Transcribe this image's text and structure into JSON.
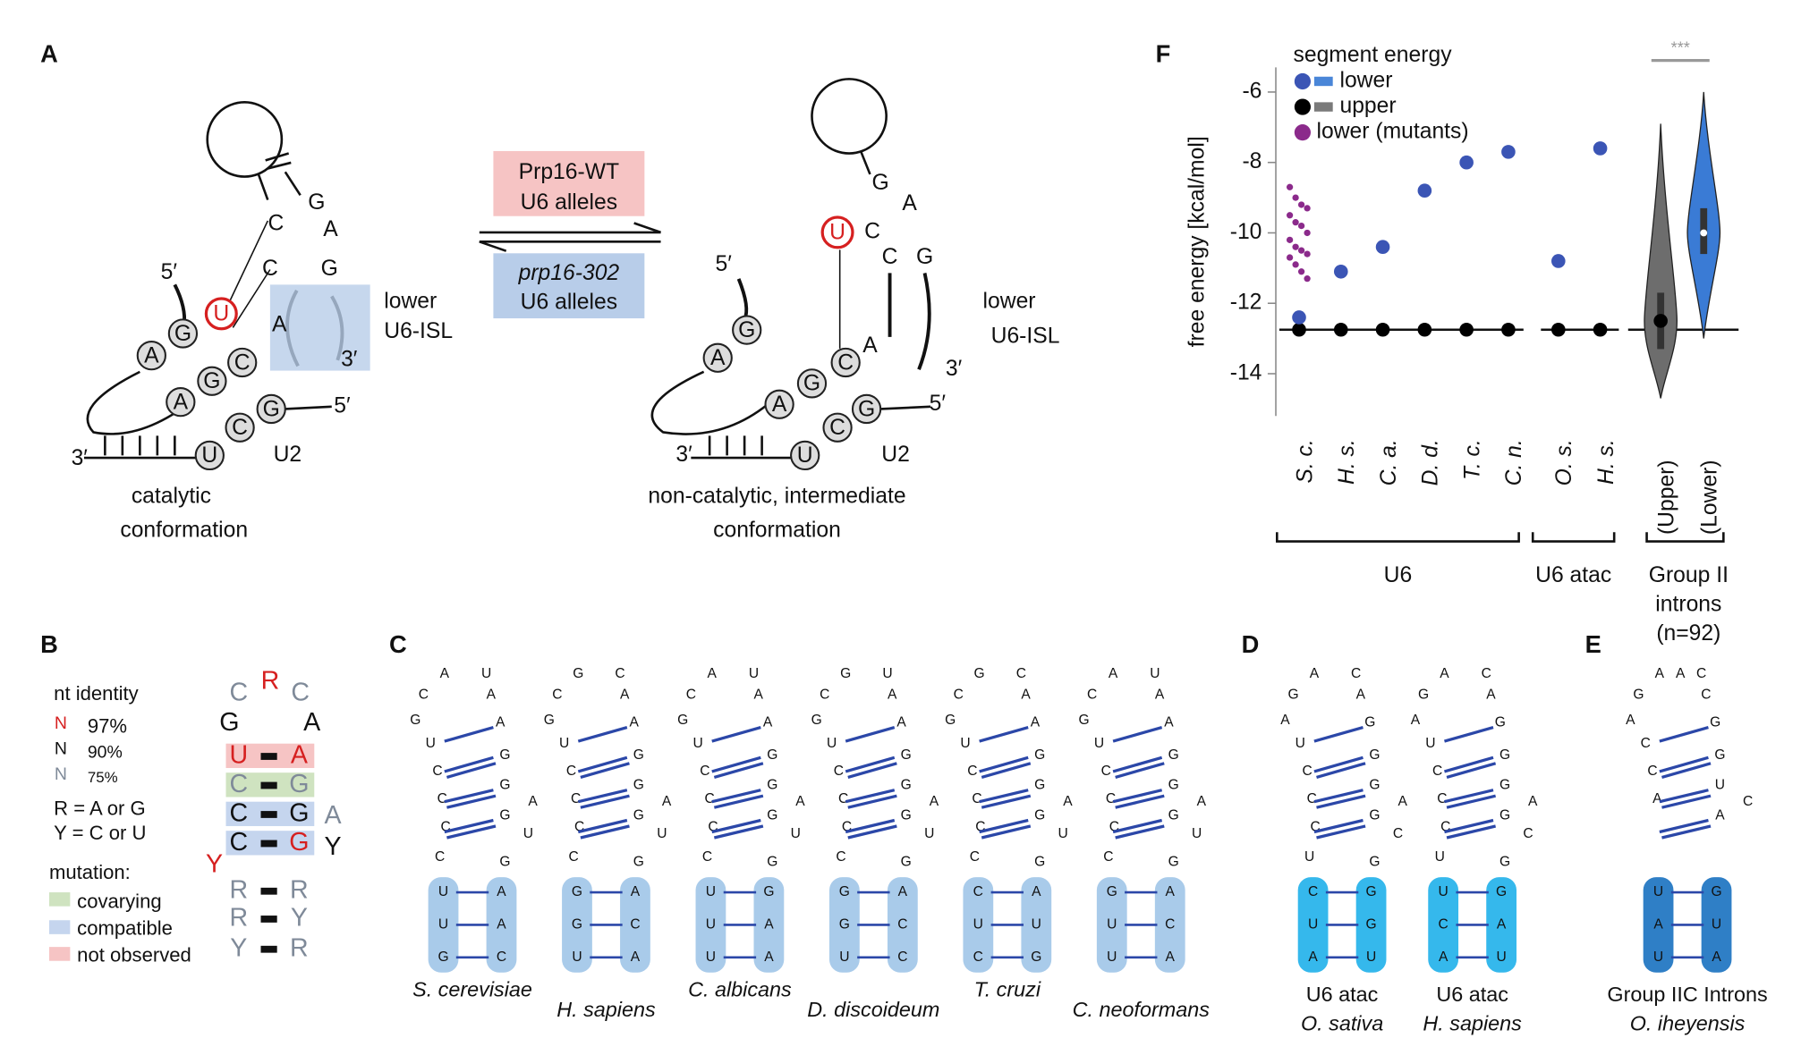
{
  "panel_a": {
    "label": "A",
    "left": {
      "plain": [
        "G",
        "C",
        "A",
        "C",
        "G",
        "A"
      ],
      "red": "U",
      "circled": [
        "G",
        "A",
        "C",
        "A",
        "G",
        "G",
        "C",
        "U"
      ],
      "ends": [
        "5′",
        "3′",
        "3′",
        "5′"
      ],
      "u2": "U2",
      "isl": [
        "lower",
        "U6-ISL"
      ],
      "caption": [
        "catalytic",
        "conformation"
      ]
    },
    "right": {
      "plain": [
        "G",
        "A",
        "C",
        "C",
        "G",
        "A"
      ],
      "red": "U",
      "circled": [
        "G",
        "A",
        "C",
        "A",
        "G",
        "G",
        "C",
        "U"
      ],
      "ends": [
        "5′",
        "3′",
        "3′",
        "5′"
      ],
      "u2": "U2",
      "isl": [
        "lower",
        "U6-ISL"
      ],
      "caption": [
        "non-catalytic, intermediate",
        "conformation"
      ]
    },
    "forward": [
      "Prp16-WT",
      "U6 alleles"
    ],
    "reverse": [
      "prp16-302",
      "U6 alleles"
    ]
  },
  "panel_b": {
    "label": "B",
    "identity_title": "nt identity",
    "identity": [
      {
        "symbol": "N",
        "text": "97%"
      },
      {
        "symbol": "N",
        "text": "90%"
      },
      {
        "symbol": "N",
        "text": "75%"
      }
    ],
    "codes": [
      "R = A or G",
      "Y = C or U"
    ],
    "mutation_title": "mutation:",
    "mutation": [
      "covarying",
      "compatible",
      "not observed"
    ],
    "loop": [
      "C",
      "R",
      "C",
      "G",
      "A"
    ],
    "pairs": [
      [
        "U",
        "A"
      ],
      [
        "C",
        "G"
      ],
      [
        "C",
        "G"
      ],
      [
        "C",
        "G"
      ],
      [
        "R",
        "R"
      ],
      [
        "R",
        "Y"
      ],
      [
        "Y",
        "R"
      ]
    ],
    "bulges": [
      "A",
      "Y",
      "Y"
    ]
  },
  "panel_c": {
    "label": "C",
    "hairpins": [
      {
        "top": [
          "A",
          "U"
        ],
        "left": [
          "C",
          "G",
          "U",
          "C",
          "C",
          "C",
          "C"
        ],
        "right": [
          "A",
          "A",
          "G",
          "G",
          "G",
          "A",
          "U",
          "G"
        ],
        "stem_left": [
          "U",
          "U",
          "G"
        ],
        "stem_right": [
          "A",
          "A",
          "C"
        ],
        "caption": [
          "S. cerevisiae"
        ]
      },
      {
        "top": [
          "G",
          "C"
        ],
        "left": [
          "C",
          "G",
          "U",
          "C",
          "C",
          "C",
          "C"
        ],
        "right": [
          "A",
          "A",
          "G",
          "G",
          "G",
          "A",
          "U",
          "G"
        ],
        "stem_left": [
          "G",
          "G",
          "U"
        ],
        "stem_right": [
          "A",
          "C",
          "A"
        ],
        "caption": [
          "H. sapiens"
        ]
      },
      {
        "top": [
          "A",
          "U"
        ],
        "left": [
          "C",
          "G",
          "U",
          "C",
          "C",
          "C",
          "C"
        ],
        "right": [
          "A",
          "A",
          "G",
          "G",
          "G",
          "A",
          "U",
          "G"
        ],
        "stem_left": [
          "U",
          "U",
          "U"
        ],
        "stem_right": [
          "G",
          "A",
          "A"
        ],
        "caption": [
          "C. albicans"
        ]
      },
      {
        "top": [
          "G",
          "U"
        ],
        "left": [
          "C",
          "G",
          "U",
          "C",
          "C",
          "C",
          "C"
        ],
        "right": [
          "A",
          "A",
          "G",
          "G",
          "G",
          "A",
          "U",
          "G"
        ],
        "stem_left": [
          "G",
          "G",
          "U"
        ],
        "stem_right": [
          "A",
          "C",
          "C"
        ],
        "caption": [
          "D. discoideum"
        ]
      },
      {
        "top": [
          "G",
          "C"
        ],
        "left": [
          "C",
          "G",
          "U",
          "C",
          "C",
          "C",
          "C"
        ],
        "right": [
          "A",
          "A",
          "G",
          "G",
          "G",
          "A",
          "U",
          "G"
        ],
        "stem_left": [
          "C",
          "U",
          "C"
        ],
        "stem_right": [
          "A",
          "U",
          "G"
        ],
        "caption": [
          "T. cruzi"
        ]
      },
      {
        "top": [
          "A",
          "U"
        ],
        "left": [
          "C",
          "G",
          "U",
          "C",
          "C",
          "C",
          "C"
        ],
        "right": [
          "A",
          "A",
          "G",
          "G",
          "G",
          "A",
          "U",
          "G"
        ],
        "stem_left": [
          "G",
          "U",
          "U"
        ],
        "stem_right": [
          "A",
          "C",
          "A"
        ],
        "caption": [
          "C. neoformans"
        ]
      }
    ]
  },
  "panel_d": {
    "label": "D",
    "hairpins": [
      {
        "top": [
          "A",
          "C"
        ],
        "left": [
          "G",
          "A",
          "U",
          "C",
          "C",
          "C",
          "U"
        ],
        "right": [
          "A",
          "G",
          "G",
          "G",
          "G",
          "A",
          "C",
          "G"
        ],
        "stem_left": [
          "C",
          "U",
          "A"
        ],
        "stem_right": [
          "G",
          "G",
          "U"
        ],
        "caption": [
          "U6 atac",
          "O. sativa"
        ]
      },
      {
        "top": [
          "A",
          "C"
        ],
        "left": [
          "G",
          "A",
          "U",
          "C",
          "C",
          "C",
          "U"
        ],
        "right": [
          "A",
          "G",
          "G",
          "G",
          "G",
          "A",
          "C",
          "G"
        ],
        "stem_left": [
          "U",
          "C",
          "A"
        ],
        "stem_right": [
          "G",
          "A",
          "U"
        ],
        "caption": [
          "U6 atac",
          "H. sapiens"
        ]
      }
    ]
  },
  "panel_e": {
    "label": "E",
    "hairpins": [
      {
        "top": [
          "A",
          "A",
          "C"
        ],
        "left": [
          "G",
          "A",
          "C",
          "C",
          "A"
        ],
        "right": [
          "C",
          "G",
          "G",
          "U",
          "A",
          "C"
        ],
        "stem_left": [
          "U",
          "A",
          "U"
        ],
        "stem_right": [
          "G",
          "U",
          "A"
        ],
        "caption": [
          "Group IIC Introns",
          "O. iheyensis"
        ]
      }
    ]
  },
  "chart_data": {
    "type": "strip",
    "label": "F",
    "ylabel": "free energy [kcal/mol]",
    "legend_title": "segment energy",
    "categories": [
      "S. c.",
      "H. s.",
      "C. a.",
      "D. d.",
      "T. c.",
      "C. n.",
      "O. s.",
      "H. s."
    ],
    "series": [
      {
        "name": "lower",
        "color": "#3b55b5",
        "box_color": "#4a86d8",
        "values": [
          -12.4,
          -11.1,
          -10.4,
          -8.8,
          -8.0,
          -7.7,
          -10.8,
          -7.6
        ]
      },
      {
        "name": "upper",
        "color": "#000000",
        "box_color": "#7a7a7a",
        "values": [
          -12.75,
          -12.75,
          -12.75,
          -12.75,
          -12.75,
          -12.75,
          -12.75,
          -12.75
        ]
      },
      {
        "name": "lower (mutants)",
        "color": "#8b2a8b",
        "values": [
          [
            -8.7,
            -9.0,
            -9.2,
            -9.3,
            -9.5,
            -9.7,
            -9.8,
            -10.0,
            -10.2,
            -10.4,
            -10.5,
            -10.6,
            -10.7,
            -10.9,
            -11.1,
            -11.3
          ],
          null,
          null,
          null,
          null,
          null,
          null,
          null
        ]
      }
    ],
    "violins": [
      {
        "name": "(Upper)",
        "color": "#6d6d6d",
        "min": -14.7,
        "q1": -13.3,
        "median": -12.5,
        "q3": -11.7,
        "max": -6.9
      },
      {
        "name": "(Lower)",
        "color": "#3a7bd5",
        "min": -13.0,
        "q1": -10.6,
        "median": -10.0,
        "q3": -9.3,
        "max": -6.0
      }
    ],
    "reference_line": -12.75,
    "significance": "***",
    "group_labels": [
      [
        "U6"
      ],
      [
        "U6 atac"
      ],
      [
        "Group II",
        "introns",
        "(n=92)"
      ]
    ],
    "ylim": [
      -15.2,
      -5.3
    ],
    "yticks": [
      -6,
      -8,
      -10,
      -12,
      -14
    ]
  }
}
